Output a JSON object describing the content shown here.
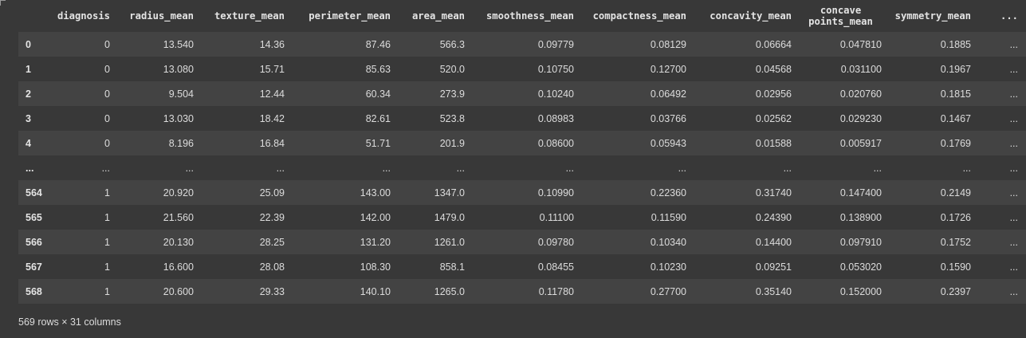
{
  "table": {
    "columns": [
      "diagnosis",
      "radius_mean",
      "texture_mean",
      "perimeter_mean",
      "area_mean",
      "smoothness_mean",
      "compactness_mean",
      "concavity_mean",
      "concave points_mean",
      "symmetry_mean",
      "..."
    ],
    "rows": [
      {
        "index": "0",
        "cells": [
          "0",
          "13.540",
          "14.36",
          "87.46",
          "566.3",
          "0.09779",
          "0.08129",
          "0.06664",
          "0.047810",
          "0.1885",
          "..."
        ]
      },
      {
        "index": "1",
        "cells": [
          "0",
          "13.080",
          "15.71",
          "85.63",
          "520.0",
          "0.10750",
          "0.12700",
          "0.04568",
          "0.031100",
          "0.1967",
          "..."
        ]
      },
      {
        "index": "2",
        "cells": [
          "0",
          "9.504",
          "12.44",
          "60.34",
          "273.9",
          "0.10240",
          "0.06492",
          "0.02956",
          "0.020760",
          "0.1815",
          "..."
        ]
      },
      {
        "index": "3",
        "cells": [
          "0",
          "13.030",
          "18.42",
          "82.61",
          "523.8",
          "0.08983",
          "0.03766",
          "0.02562",
          "0.029230",
          "0.1467",
          "..."
        ]
      },
      {
        "index": "4",
        "cells": [
          "0",
          "8.196",
          "16.84",
          "51.71",
          "201.9",
          "0.08600",
          "0.05943",
          "0.01588",
          "0.005917",
          "0.1769",
          "..."
        ]
      },
      {
        "index": "...",
        "cells": [
          "...",
          "...",
          "...",
          "...",
          "...",
          "...",
          "...",
          "...",
          "...",
          "...",
          "..."
        ]
      },
      {
        "index": "564",
        "cells": [
          "1",
          "20.920",
          "25.09",
          "143.00",
          "1347.0",
          "0.10990",
          "0.22360",
          "0.31740",
          "0.147400",
          "0.2149",
          "..."
        ]
      },
      {
        "index": "565",
        "cells": [
          "1",
          "21.560",
          "22.39",
          "142.00",
          "1479.0",
          "0.11100",
          "0.11590",
          "0.24390",
          "0.138900",
          "0.1726",
          "..."
        ]
      },
      {
        "index": "566",
        "cells": [
          "1",
          "20.130",
          "28.25",
          "131.20",
          "1261.0",
          "0.09780",
          "0.10340",
          "0.14400",
          "0.097910",
          "0.1752",
          "..."
        ]
      },
      {
        "index": "567",
        "cells": [
          "1",
          "16.600",
          "28.08",
          "108.30",
          "858.1",
          "0.08455",
          "0.10230",
          "0.09251",
          "0.053020",
          "0.1590",
          "..."
        ]
      },
      {
        "index": "568",
        "cells": [
          "1",
          "20.600",
          "29.33",
          "140.10",
          "1265.0",
          "0.11780",
          "0.27700",
          "0.35140",
          "0.152000",
          "0.2397",
          "..."
        ]
      }
    ]
  },
  "footer": "569 rows × 31 columns"
}
